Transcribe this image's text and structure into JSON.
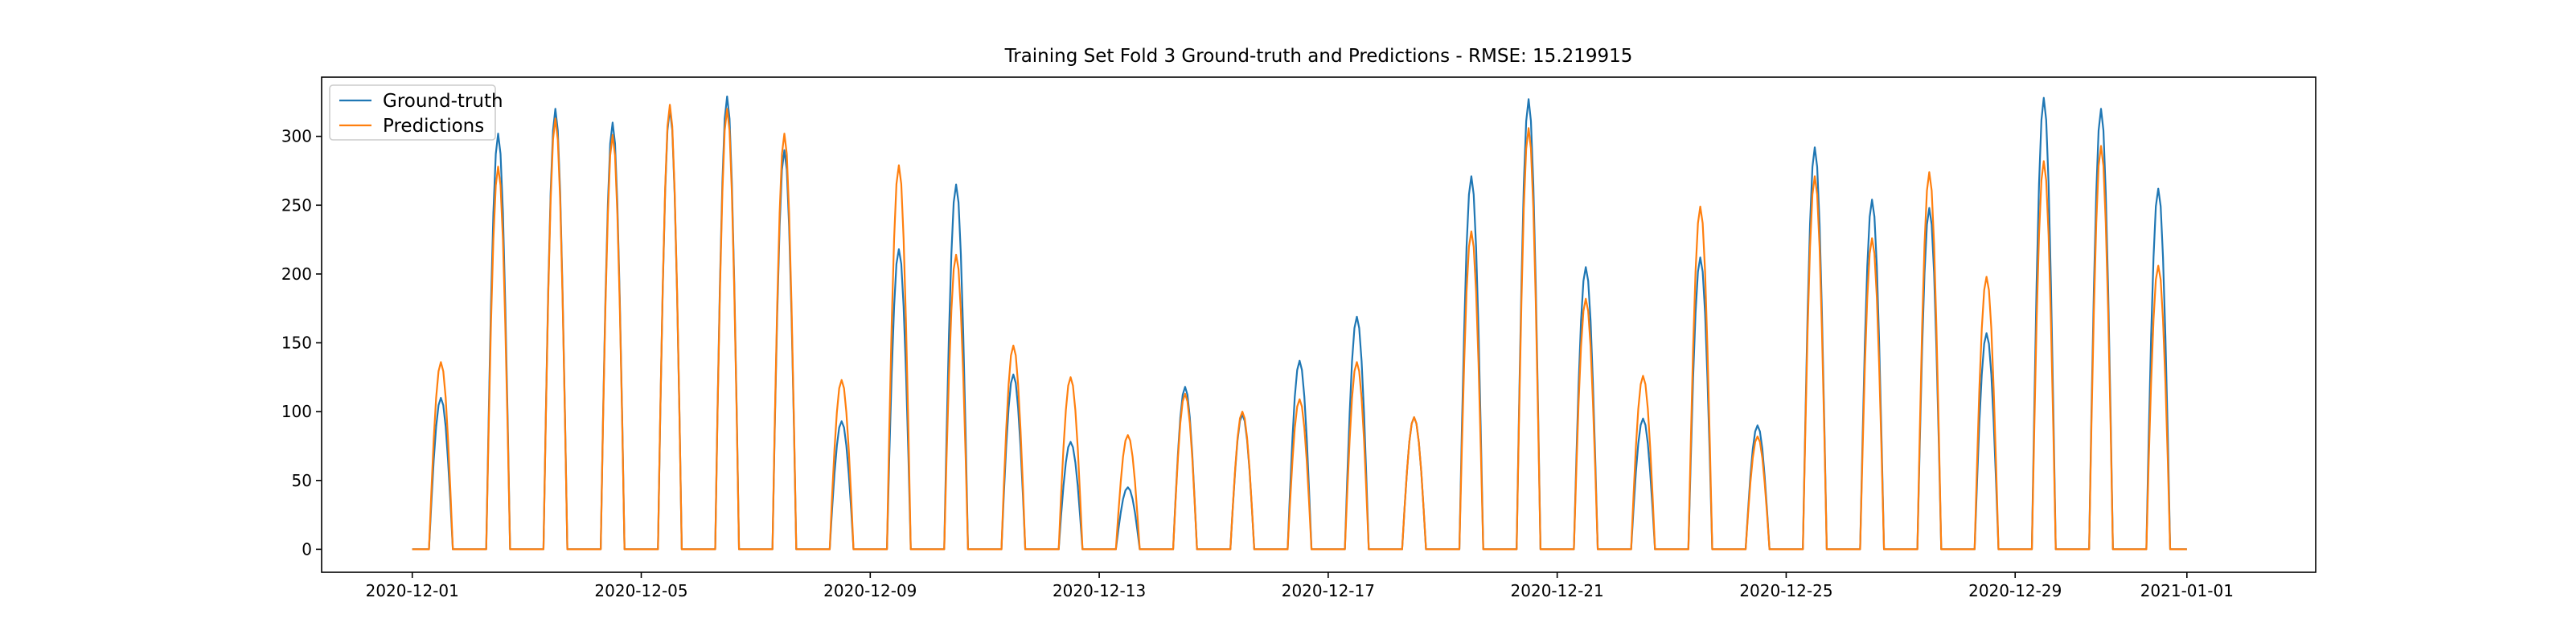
{
  "chart_data": {
    "type": "line",
    "title": "Training Set Fold 3 Ground-truth and Predictions - RMSE: 15.219915",
    "xlabel": "",
    "ylabel": "",
    "x_range": [
      "2020-11-29T10:00",
      "2021-01-03T06:00"
    ],
    "ylim": [
      -16.7,
      343
    ],
    "grid": false,
    "legend_position": "top-left",
    "x_ticks": [
      "2020-12-01",
      "2020-12-05",
      "2020-12-09",
      "2020-12-13",
      "2020-12-17",
      "2020-12-21",
      "2020-12-25",
      "2020-12-29",
      "2021-01-01"
    ],
    "y_ticks": [
      0,
      50,
      100,
      150,
      200,
      250,
      300
    ],
    "daylight_hours": {
      "start": 7,
      "peak": 12,
      "end": 17
    },
    "series": [
      {
        "name": "Ground-truth",
        "color": "#1f77b4",
        "daily_peaks": [
          {
            "date": "2020-12-01",
            "peak": 110
          },
          {
            "date": "2020-12-02",
            "peak": 302
          },
          {
            "date": "2020-12-03",
            "peak": 320
          },
          {
            "date": "2020-12-04",
            "peak": 310
          },
          {
            "date": "2020-12-05",
            "peak": 320
          },
          {
            "date": "2020-12-06",
            "peak": 329
          },
          {
            "date": "2020-12-07",
            "peak": 290
          },
          {
            "date": "2020-12-08",
            "peak": 93
          },
          {
            "date": "2020-12-09",
            "peak": 218
          },
          {
            "date": "2020-12-10",
            "peak": 265
          },
          {
            "date": "2020-12-11",
            "peak": 127
          },
          {
            "date": "2020-12-12",
            "peak": 78
          },
          {
            "date": "2020-12-13",
            "peak": 45
          },
          {
            "date": "2020-12-14",
            "peak": 118
          },
          {
            "date": "2020-12-15",
            "peak": 98
          },
          {
            "date": "2020-12-16",
            "peak": 137
          },
          {
            "date": "2020-12-17",
            "peak": 169
          },
          {
            "date": "2020-12-18",
            "peak": 96
          },
          {
            "date": "2020-12-19",
            "peak": 271
          },
          {
            "date": "2020-12-20",
            "peak": 327
          },
          {
            "date": "2020-12-21",
            "peak": 205
          },
          {
            "date": "2020-12-22",
            "peak": 95
          },
          {
            "date": "2020-12-23",
            "peak": 212
          },
          {
            "date": "2020-12-24",
            "peak": 90
          },
          {
            "date": "2020-12-25",
            "peak": 292
          },
          {
            "date": "2020-12-26",
            "peak": 254
          },
          {
            "date": "2020-12-27",
            "peak": 248
          },
          {
            "date": "2020-12-28",
            "peak": 157
          },
          {
            "date": "2020-12-29",
            "peak": 328
          },
          {
            "date": "2020-12-30",
            "peak": 320
          },
          {
            "date": "2020-12-31",
            "peak": 262
          }
        ]
      },
      {
        "name": "Predictions",
        "color": "#ff7f0e",
        "daily_peaks": [
          {
            "date": "2020-12-01",
            "peak": 136
          },
          {
            "date": "2020-12-02",
            "peak": 278
          },
          {
            "date": "2020-12-03",
            "peak": 313
          },
          {
            "date": "2020-12-04",
            "peak": 301
          },
          {
            "date": "2020-12-05",
            "peak": 323
          },
          {
            "date": "2020-12-06",
            "peak": 320
          },
          {
            "date": "2020-12-07",
            "peak": 302
          },
          {
            "date": "2020-12-08",
            "peak": 123
          },
          {
            "date": "2020-12-09",
            "peak": 279
          },
          {
            "date": "2020-12-10",
            "peak": 214
          },
          {
            "date": "2020-12-11",
            "peak": 148
          },
          {
            "date": "2020-12-12",
            "peak": 125
          },
          {
            "date": "2020-12-13",
            "peak": 83
          },
          {
            "date": "2020-12-14",
            "peak": 113
          },
          {
            "date": "2020-12-15",
            "peak": 100
          },
          {
            "date": "2020-12-16",
            "peak": 109
          },
          {
            "date": "2020-12-17",
            "peak": 136
          },
          {
            "date": "2020-12-18",
            "peak": 96
          },
          {
            "date": "2020-12-19",
            "peak": 231
          },
          {
            "date": "2020-12-20",
            "peak": 306
          },
          {
            "date": "2020-12-21",
            "peak": 182
          },
          {
            "date": "2020-12-22",
            "peak": 126
          },
          {
            "date": "2020-12-23",
            "peak": 249
          },
          {
            "date": "2020-12-24",
            "peak": 82
          },
          {
            "date": "2020-12-25",
            "peak": 271
          },
          {
            "date": "2020-12-26",
            "peak": 226
          },
          {
            "date": "2020-12-27",
            "peak": 274
          },
          {
            "date": "2020-12-28",
            "peak": 198
          },
          {
            "date": "2020-12-29",
            "peak": 282
          },
          {
            "date": "2020-12-30",
            "peak": 293
          },
          {
            "date": "2020-12-31",
            "peak": 206
          }
        ]
      }
    ]
  }
}
